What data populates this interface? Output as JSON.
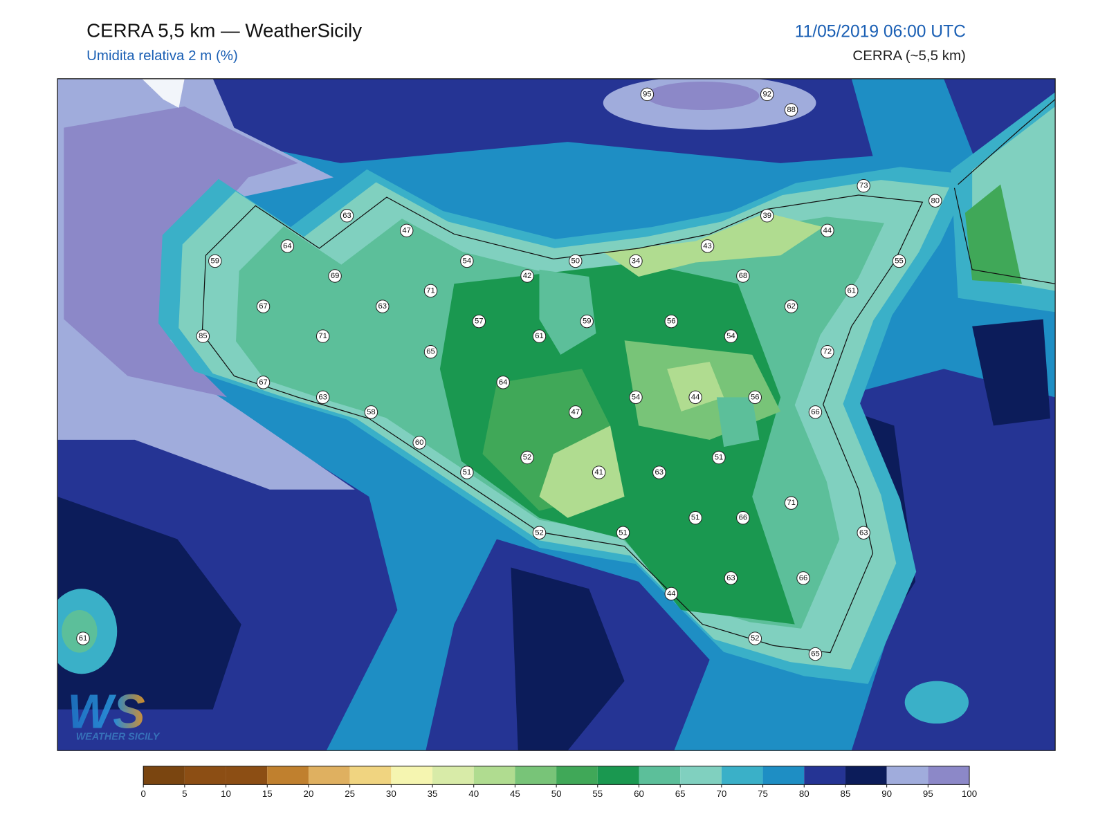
{
  "header": {
    "title": "CERRA 5,5 km — WeatherSicily",
    "subtitle": "Umidita relativa 2 m (%)",
    "valid_time": "11/05/2019 06:00 UTC",
    "model": "CERRA (~5,5 km)"
  },
  "stations": [
    95,
    92,
    88,
    73,
    80,
    63,
    39,
    47,
    44,
    64,
    43,
    59,
    54,
    50,
    34,
    55,
    69,
    42,
    68,
    71,
    61,
    67,
    63,
    62,
    57,
    59,
    56,
    85,
    71,
    61,
    54,
    65,
    72,
    67,
    64,
    63,
    54,
    44,
    56,
    58,
    47,
    66,
    60,
    52,
    51,
    51,
    41,
    63,
    71,
    51,
    66,
    52,
    51,
    63,
    63,
    66,
    44,
    52,
    65,
    61
  ],
  "colorbar": {
    "ticks": [
      0,
      5,
      10,
      15,
      20,
      25,
      30,
      35,
      40,
      45,
      50,
      55,
      60,
      65,
      70,
      75,
      80,
      85,
      90,
      95,
      100
    ],
    "colors": [
      "#7a4510",
      "#8c4e14",
      "#8c4e14",
      "#c0802e",
      "#dfb060",
      "#f0d480",
      "#f5f5b0",
      "#d8eba8",
      "#b0dc90",
      "#78c478",
      "#40a858",
      "#1a9850",
      "#5cbf9a",
      "#80d0bf",
      "#3ab0c8",
      "#1e8ec4",
      "#253494",
      "#0c1c5a",
      "#a0acdc",
      "#8c88c8"
    ]
  },
  "logo": {
    "initials": "WS",
    "text": "WEATHER SICILY"
  }
}
